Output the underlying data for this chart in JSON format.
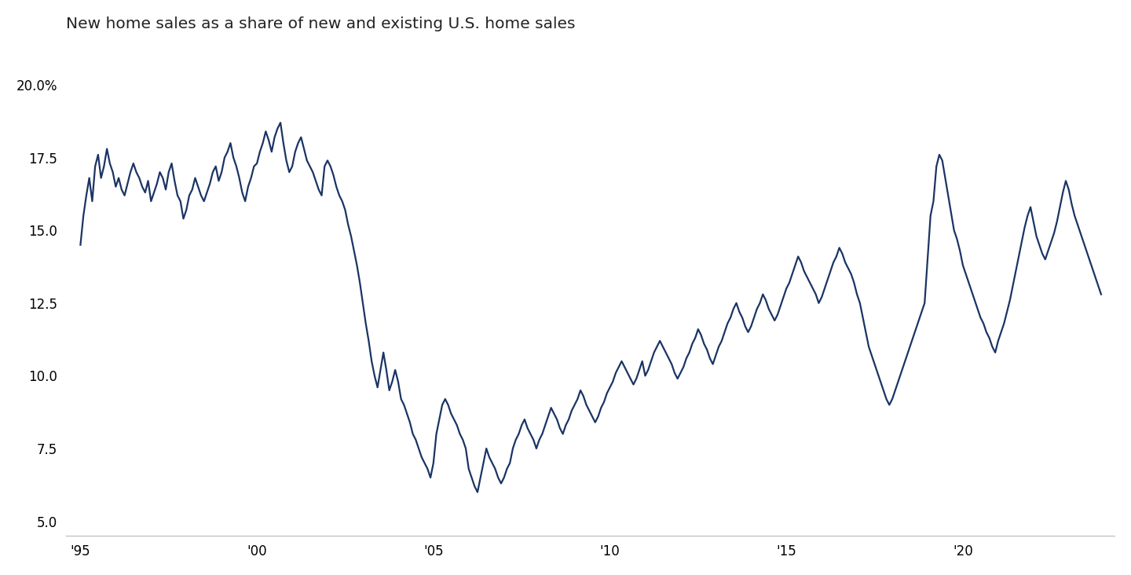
{
  "title": "New home sales as a share of new and existing U.S. home sales",
  "title_fontsize": 14.5,
  "line_color": "#1a3464",
  "line_width": 1.6,
  "background_color": "#ffffff",
  "ylim": [
    4.5,
    21.5
  ],
  "yticks": [
    5.0,
    7.5,
    10.0,
    12.5,
    15.0,
    17.5,
    20.0
  ],
  "ytick_labels": [
    "5.0",
    "7.5",
    "10.0",
    "12.5",
    "15.0",
    "17.5",
    "20.0%"
  ],
  "xtick_labels": [
    "'95",
    "'00",
    "'05",
    "'10",
    "'15",
    "'20"
  ],
  "xtick_years": [
    1995,
    2000,
    2005,
    2010,
    2015,
    2020
  ],
  "xlim_start": 1994.6,
  "xlim_end": 2024.3,
  "values": [
    14.5,
    15.5,
    16.2,
    16.8,
    16.0,
    17.2,
    17.6,
    16.8,
    17.2,
    17.8,
    17.3,
    17.0,
    16.5,
    16.8,
    16.4,
    16.2,
    16.6,
    17.0,
    17.3,
    17.0,
    16.8,
    16.5,
    16.3,
    16.7,
    16.0,
    16.3,
    16.6,
    17.0,
    16.8,
    16.4,
    17.0,
    17.3,
    16.7,
    16.2,
    16.0,
    15.4,
    15.7,
    16.2,
    16.4,
    16.8,
    16.5,
    16.2,
    16.0,
    16.3,
    16.6,
    17.0,
    17.2,
    16.7,
    17.0,
    17.5,
    17.7,
    18.0,
    17.5,
    17.2,
    16.8,
    16.3,
    16.0,
    16.5,
    16.8,
    17.2,
    17.3,
    17.7,
    18.0,
    18.4,
    18.1,
    17.7,
    18.2,
    18.5,
    18.7,
    18.0,
    17.4,
    17.0,
    17.2,
    17.7,
    18.0,
    18.2,
    17.8,
    17.4,
    17.2,
    17.0,
    16.7,
    16.4,
    16.2,
    17.2,
    17.4,
    17.2,
    16.9,
    16.5,
    16.2,
    16.0,
    15.7,
    15.2,
    14.8,
    14.3,
    13.8,
    13.2,
    12.5,
    11.8,
    11.2,
    10.5,
    10.0,
    9.6,
    10.2,
    10.8,
    10.2,
    9.5,
    9.8,
    10.2,
    9.8,
    9.2,
    9.0,
    8.7,
    8.4,
    8.0,
    7.8,
    7.5,
    7.2,
    7.0,
    6.8,
    6.5,
    7.0,
    8.0,
    8.5,
    9.0,
    9.2,
    9.0,
    8.7,
    8.5,
    8.3,
    8.0,
    7.8,
    7.5,
    6.8,
    6.5,
    6.2,
    6.0,
    6.5,
    7.0,
    7.5,
    7.2,
    7.0,
    6.8,
    6.5,
    6.3,
    6.5,
    6.8,
    7.0,
    7.5,
    7.8,
    8.0,
    8.3,
    8.5,
    8.2,
    8.0,
    7.8,
    7.5,
    7.8,
    8.0,
    8.3,
    8.6,
    8.9,
    8.7,
    8.5,
    8.2,
    8.0,
    8.3,
    8.5,
    8.8,
    9.0,
    9.2,
    9.5,
    9.3,
    9.0,
    8.8,
    8.6,
    8.4,
    8.6,
    8.9,
    9.1,
    9.4,
    9.6,
    9.8,
    10.1,
    10.3,
    10.5,
    10.3,
    10.1,
    9.9,
    9.7,
    9.9,
    10.2,
    10.5,
    10.0,
    10.2,
    10.5,
    10.8,
    11.0,
    11.2,
    11.0,
    10.8,
    10.6,
    10.4,
    10.1,
    9.9,
    10.1,
    10.3,
    10.6,
    10.8,
    11.1,
    11.3,
    11.6,
    11.4,
    11.1,
    10.9,
    10.6,
    10.4,
    10.7,
    11.0,
    11.2,
    11.5,
    11.8,
    12.0,
    12.3,
    12.5,
    12.2,
    12.0,
    11.7,
    11.5,
    11.7,
    12.0,
    12.3,
    12.5,
    12.8,
    12.6,
    12.3,
    12.1,
    11.9,
    12.1,
    12.4,
    12.7,
    13.0,
    13.2,
    13.5,
    13.8,
    14.1,
    13.9,
    13.6,
    13.4,
    13.2,
    13.0,
    12.8,
    12.5,
    12.7,
    13.0,
    13.3,
    13.6,
    13.9,
    14.1,
    14.4,
    14.2,
    13.9,
    13.7,
    13.5,
    13.2,
    12.8,
    12.5,
    12.0,
    11.5,
    11.0,
    10.7,
    10.4,
    10.1,
    9.8,
    9.5,
    9.2,
    9.0,
    9.2,
    9.5,
    9.8,
    10.1,
    10.4,
    10.7,
    11.0,
    11.3,
    11.6,
    11.9,
    12.2,
    12.5,
    14.0,
    15.5,
    16.0,
    17.2,
    17.6,
    17.4,
    16.8,
    16.2,
    15.6,
    15.0,
    14.7,
    14.3,
    13.8,
    13.5,
    13.2,
    12.9,
    12.6,
    12.3,
    12.0,
    11.8,
    11.5,
    11.3,
    11.0,
    10.8,
    11.2,
    11.5,
    11.8,
    12.2,
    12.6,
    13.1,
    13.6,
    14.1,
    14.6,
    15.1,
    15.5,
    15.8,
    15.3,
    14.8,
    14.5,
    14.2,
    14.0,
    14.3,
    14.6,
    14.9,
    15.3,
    15.8,
    16.3,
    16.7,
    16.4,
    15.9,
    15.5,
    15.2,
    14.9,
    14.6,
    14.3,
    14.0,
    13.7,
    13.4,
    13.1,
    12.8
  ]
}
